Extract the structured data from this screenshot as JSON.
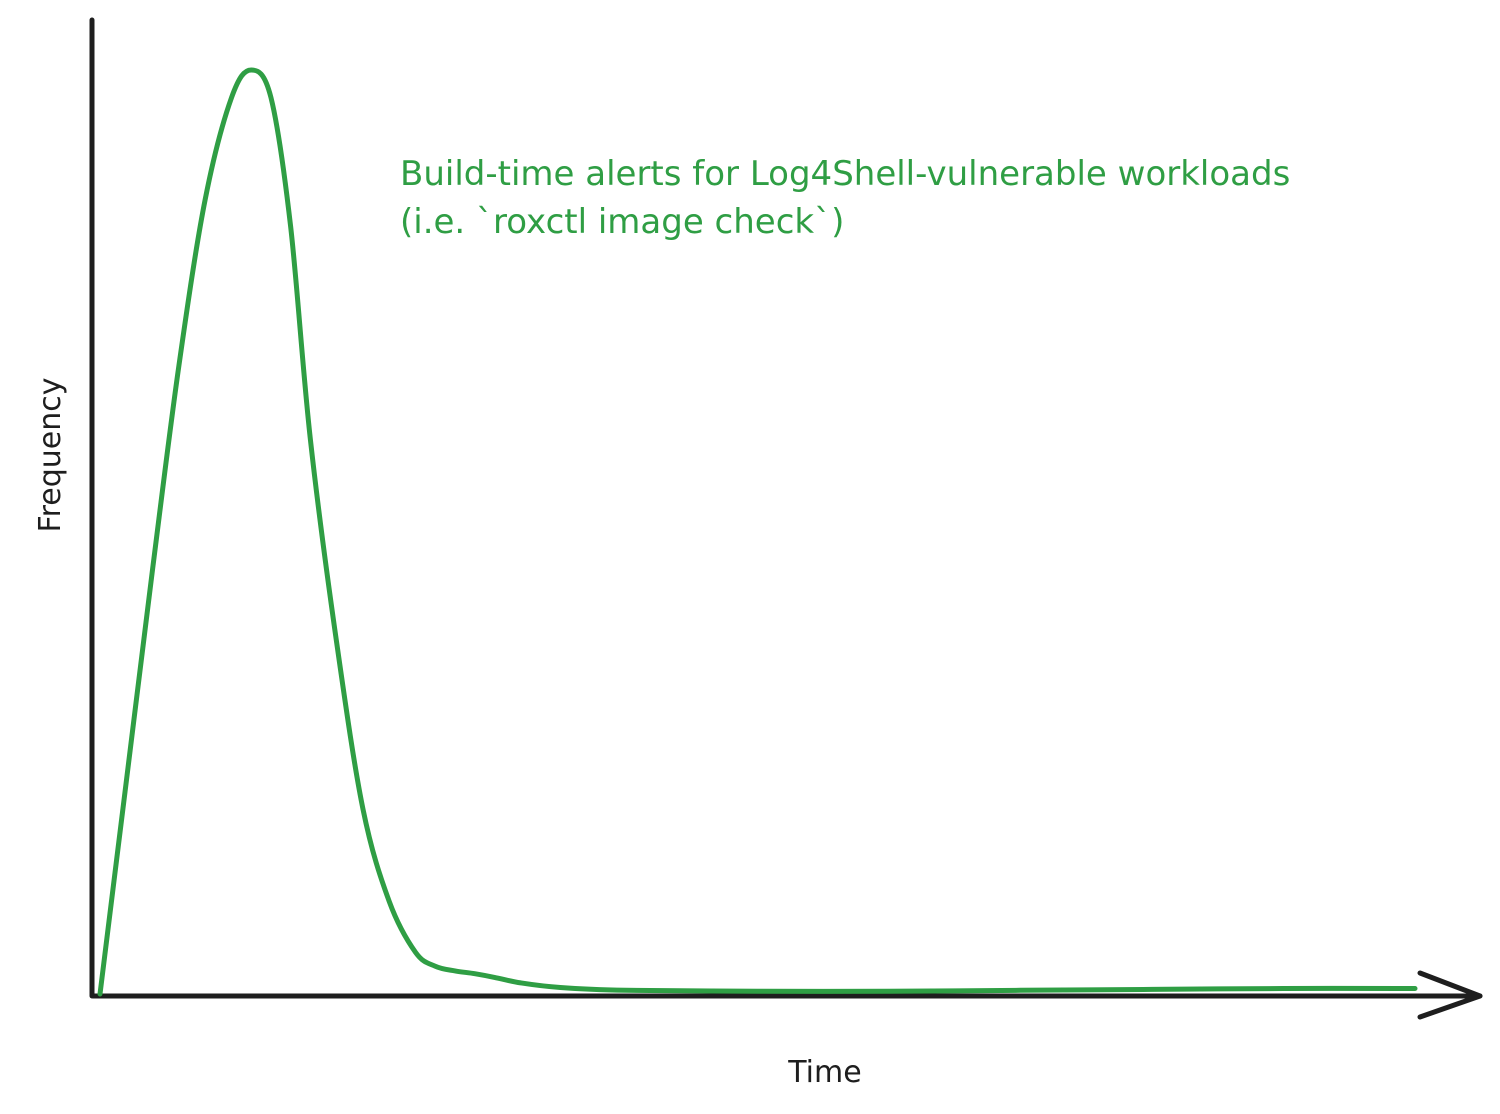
{
  "colors": {
    "axis": "#1e1e1e",
    "series": "#2f9e44"
  },
  "chart_data": {
    "type": "line",
    "xlabel": "Time",
    "ylabel": "Frequency",
    "annotation": {
      "line1": "Build-time alerts for Log4Shell-vulnerable workloads",
      "line2": "(i.e. `roxctl image check`)"
    },
    "grid": false,
    "x_ticks": false,
    "y_ticks": false,
    "xlim": [
      0,
      100
    ],
    "ylim": [
      0,
      100
    ],
    "series": [
      {
        "x": [
          0,
          2,
          4,
          6,
          8,
          10,
          11.5,
          13,
          14.5,
          16,
          18,
          20,
          22,
          24,
          25.5,
          27,
          28.5,
          30,
          32,
          35,
          40,
          50,
          60,
          70,
          80,
          90,
          100
        ],
        "y": [
          0,
          23,
          46,
          68,
          86,
          97,
          100,
          97,
          83,
          60,
          38,
          20,
          10,
          4.5,
          3,
          2.5,
          2.2,
          1.8,
          1.2,
          0.7,
          0.4,
          0.3,
          0.3,
          0.4,
          0.5,
          0.6,
          0.6
        ]
      }
    ]
  }
}
